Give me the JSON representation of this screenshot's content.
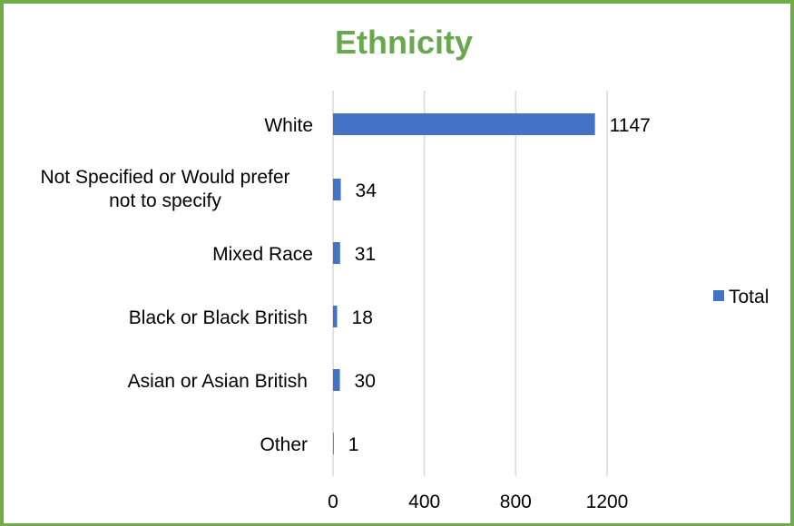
{
  "chart_data": {
    "type": "bar",
    "orientation": "horizontal",
    "title": "Ethnicity",
    "categories": [
      "White",
      "Not Specified or Would prefer not to specify",
      "Mixed Race",
      "Black or Black British",
      "Asian or Asian British",
      "Other"
    ],
    "category_lines": [
      [
        "White"
      ],
      [
        "Not Specified or Would prefer",
        "not to specify"
      ],
      [
        "Mixed Race"
      ],
      [
        "Black or Black British"
      ],
      [
        "Asian or Asian British"
      ],
      [
        "Other"
      ]
    ],
    "series": [
      {
        "name": "Total",
        "values": [
          1147,
          34,
          31,
          18,
          30,
          1
        ],
        "color": "#4472c4"
      }
    ],
    "xlim": [
      0,
      1200
    ],
    "x_ticks": [
      0,
      400,
      800,
      1200
    ],
    "grid": true,
    "legend_position": "right"
  }
}
